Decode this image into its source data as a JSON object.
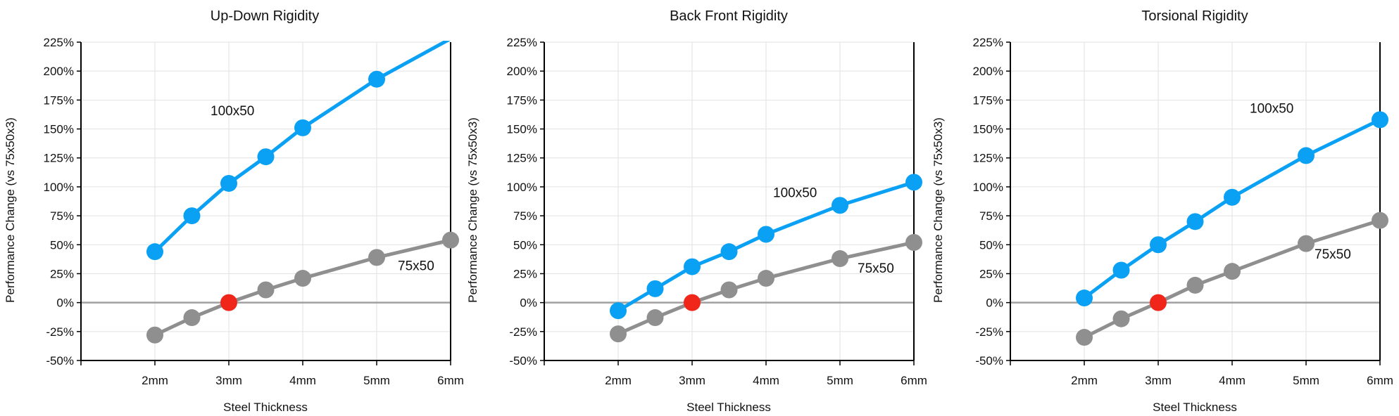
{
  "colors": {
    "series_100x50": "#0AA1F5",
    "series_75x50": "#8F8F8F",
    "baseline_marker": "#F0261B",
    "zero_line": "#A0A0A0",
    "grid": "#E2E2E2",
    "axis": "#000000"
  },
  "chart_data": [
    {
      "type": "line",
      "title": "Up-Down Rigidity",
      "xlabel": "Steel Thickness",
      "ylabel": "Performance Change (vs 75x50x3)",
      "xlim": [
        1,
        6
      ],
      "ylim": [
        -50,
        225
      ],
      "xticks": [
        2,
        3,
        4,
        5,
        6
      ],
      "xtick_labels": [
        "2mm",
        "3mm",
        "4mm",
        "5mm",
        "6mm"
      ],
      "yticks": [
        -50,
        -25,
        0,
        25,
        50,
        75,
        100,
        125,
        150,
        175,
        200,
        225
      ],
      "ytick_labels": [
        "-50%",
        "-25%",
        "0%",
        "25%",
        "50%",
        "75%",
        "100%",
        "125%",
        "150%",
        "175%",
        "200%",
        "225%"
      ],
      "grid": true,
      "baseline_point": {
        "x": 3,
        "y": 0
      },
      "series": [
        {
          "name": "100x50",
          "x": [
            2,
            2.5,
            3,
            3.5,
            4,
            5
          ],
          "y": [
            44,
            75,
            103,
            126,
            151,
            193
          ],
          "trend_extend_to": {
            "x": 6,
            "y": 228
          }
        },
        {
          "name": "75x50",
          "x": [
            2,
            2.5,
            3,
            3.5,
            4,
            5,
            6
          ],
          "y": [
            -28,
            -13,
            0,
            11,
            21,
            39,
            54
          ]
        }
      ]
    },
    {
      "type": "line",
      "title": "Back Front Rigidity",
      "xlabel": "Steel Thickness",
      "ylabel": "Performance Change (vs 75x50x3)",
      "xlim": [
        1,
        6
      ],
      "ylim": [
        -50,
        225
      ],
      "xticks": [
        2,
        3,
        4,
        5,
        6
      ],
      "xtick_labels": [
        "2mm",
        "3mm",
        "4mm",
        "5mm",
        "6mm"
      ],
      "yticks": [
        -50,
        -25,
        0,
        25,
        50,
        75,
        100,
        125,
        150,
        175,
        200,
        225
      ],
      "ytick_labels": [
        "-50%",
        "-25%",
        "0%",
        "25%",
        "50%",
        "75%",
        "100%",
        "125%",
        "150%",
        "175%",
        "200%",
        "225%"
      ],
      "grid": true,
      "baseline_point": {
        "x": 3,
        "y": 0
      },
      "series": [
        {
          "name": "100x50",
          "x": [
            2,
            2.5,
            3,
            3.5,
            4,
            5,
            6
          ],
          "y": [
            -7,
            12,
            31,
            44,
            59,
            84,
            104
          ]
        },
        {
          "name": "75x50",
          "x": [
            2,
            2.5,
            3,
            3.5,
            4,
            5,
            6
          ],
          "y": [
            -27,
            -13,
            0,
            11,
            21,
            38,
            52
          ]
        }
      ]
    },
    {
      "type": "line",
      "title": "Torsional Rigidity",
      "xlabel": "Steel Thickness",
      "ylabel": "Performance Change (vs 75x50x3)",
      "xlim": [
        1,
        6
      ],
      "ylim": [
        -50,
        225
      ],
      "xticks": [
        2,
        3,
        4,
        5,
        6
      ],
      "xtick_labels": [
        "2mm",
        "3mm",
        "4mm",
        "5mm",
        "6mm"
      ],
      "yticks": [
        -50,
        -25,
        0,
        25,
        50,
        75,
        100,
        125,
        150,
        175,
        200,
        225
      ],
      "ytick_labels": [
        "-50%",
        "-25%",
        "0%",
        "25%",
        "50%",
        "75%",
        "100%",
        "125%",
        "150%",
        "175%",
        "200%",
        "225%"
      ],
      "grid": true,
      "baseline_point": {
        "x": 3,
        "y": 0
      },
      "series": [
        {
          "name": "100x50",
          "x": [
            2,
            2.5,
            3,
            3.5,
            4,
            5,
            6
          ],
          "y": [
            4,
            28,
            50,
            70,
            91,
            127,
            158
          ]
        },
        {
          "name": "75x50",
          "x": [
            2,
            2.5,
            3,
            3.5,
            4,
            5,
            6
          ],
          "y": [
            -30,
            -14,
            0,
            15,
            27,
            51,
            71
          ]
        }
      ]
    }
  ]
}
